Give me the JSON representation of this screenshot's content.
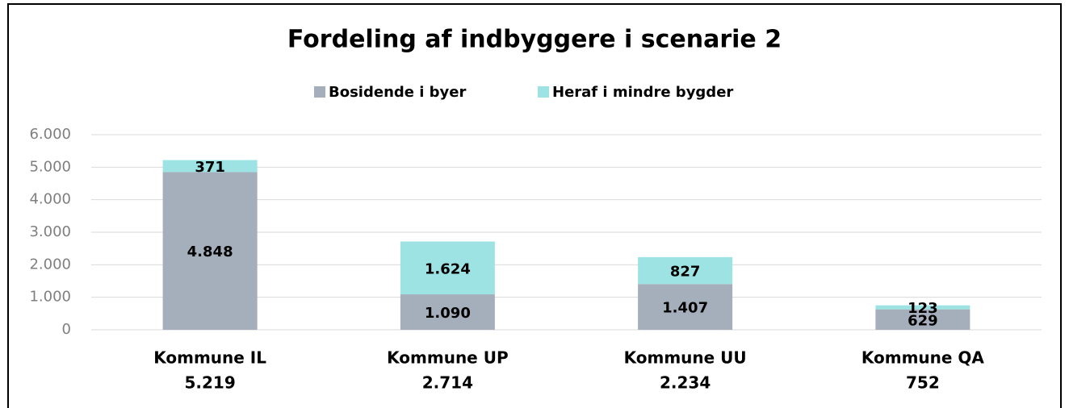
{
  "chart_data": {
    "type": "stacked_bar",
    "title": "Fordeling af indbyggere i scenarie 2",
    "categories": [
      "Kommune IL",
      "Kommune UP",
      "Kommune UU",
      "Kommune QA"
    ],
    "totals": [
      {
        "value": 5219,
        "label": "5.219"
      },
      {
        "value": 2714,
        "label": "2.714"
      },
      {
        "value": 2234,
        "label": "2.234"
      },
      {
        "value": 752,
        "label": "752"
      }
    ],
    "series": [
      {
        "name": "Bosidende i byer",
        "color": "#a5aebb",
        "values": [
          4848,
          1090,
          1407,
          629
        ],
        "value_labels": [
          "4.848",
          "1.090",
          "1.407",
          "629"
        ]
      },
      {
        "name": "Heraf i mindre bygder",
        "color": "#9de3e3",
        "values": [
          371,
          1624,
          827,
          123
        ],
        "value_labels": [
          "371",
          "1.624",
          "827",
          "123"
        ]
      }
    ],
    "ylim": [
      0,
      6000
    ],
    "yticks": [
      0,
      {
        "value": 1000,
        "label": "1.000"
      },
      {
        "value": 2000,
        "label": "2.000"
      },
      {
        "value": 3000,
        "label": "3.000"
      },
      {
        "value": 4000,
        "label": "4.000"
      },
      {
        "value": 5000,
        "label": "5.000"
      },
      {
        "value": 6000,
        "label": "6.000"
      }
    ],
    "grid": true,
    "legend": "top"
  }
}
